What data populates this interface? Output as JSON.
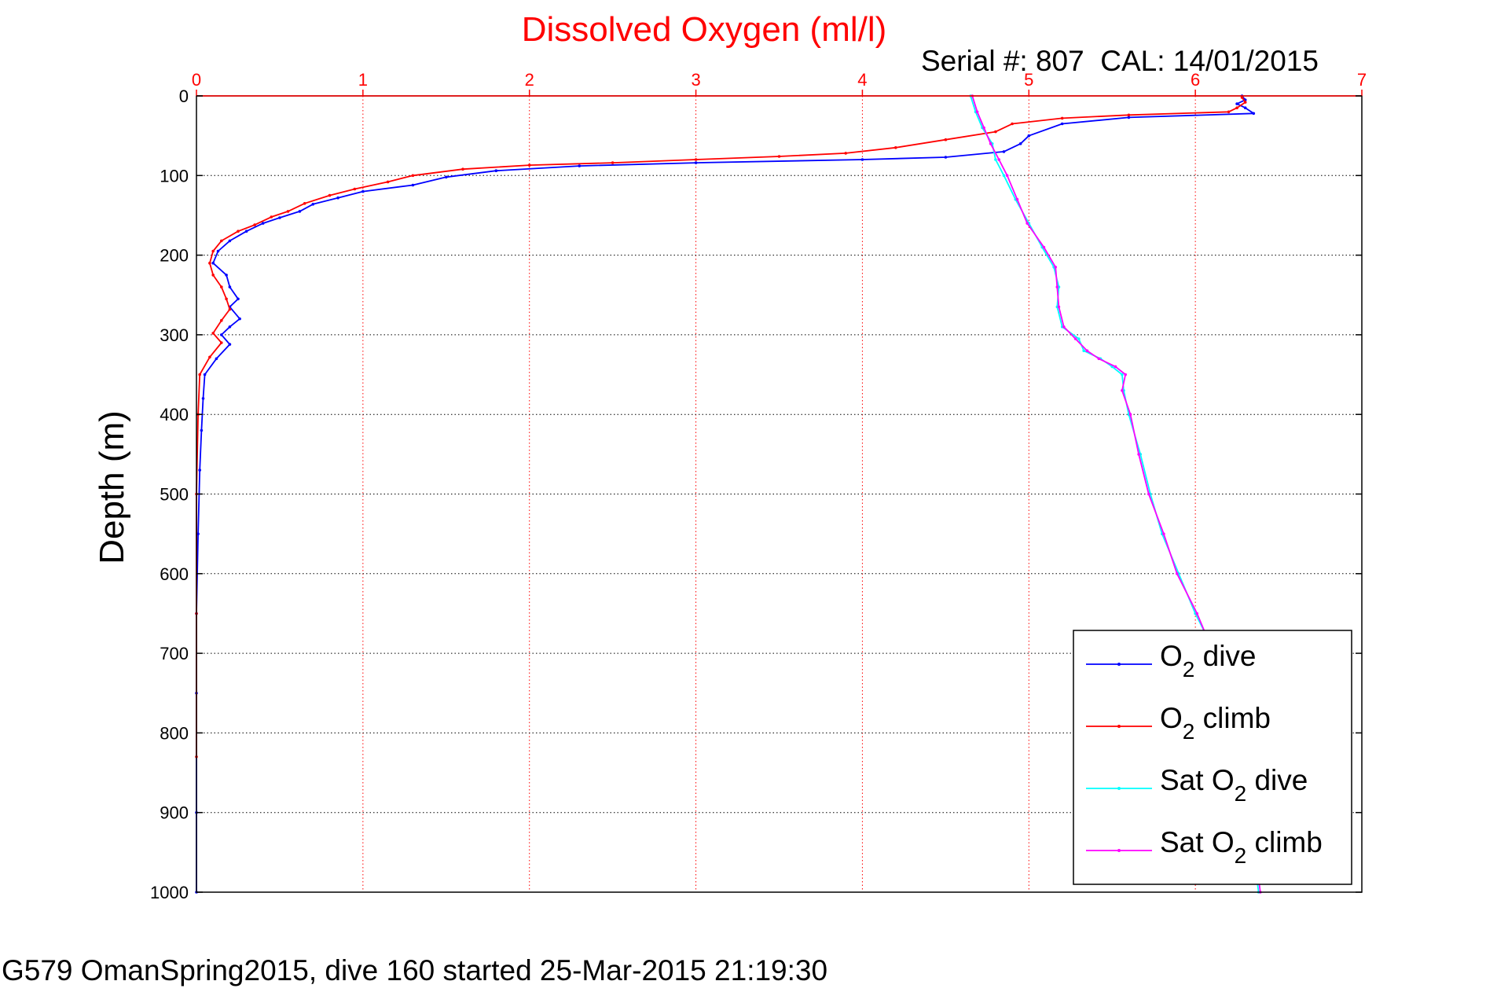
{
  "chart_data": {
    "type": "line",
    "title": "Dissolved Oxygen (ml/l)",
    "subtitle": "Serial #: 807  CAL: 14/01/2015",
    "ylabel": "Depth (m)",
    "xlim": [
      0,
      7
    ],
    "ylim": [
      0,
      1000
    ],
    "y_reversed": true,
    "x_axis_position": "top",
    "grid": true,
    "xticks": [
      "0",
      "1",
      "2",
      "3",
      "4",
      "5",
      "6",
      "7"
    ],
    "yticks": [
      "0",
      "100",
      "200",
      "300",
      "400",
      "500",
      "600",
      "700",
      "800",
      "900",
      "1000"
    ],
    "legend_position": "bottom-right",
    "colors": {
      "title": "#ff0000",
      "x_axis": "#ff0000",
      "grid_x": "#ff0000",
      "grid_y": "#000000"
    },
    "series": [
      {
        "name": "O2 dive",
        "legend": {
          "main": "O",
          "sub": "2",
          "rest": " dive"
        },
        "color": "#0000ff",
        "points": [
          [
            6.28,
            0
          ],
          [
            6.3,
            5
          ],
          [
            6.25,
            10
          ],
          [
            6.3,
            15
          ],
          [
            6.35,
            22
          ],
          [
            5.6,
            27
          ],
          [
            5.2,
            35
          ],
          [
            5.0,
            50
          ],
          [
            4.95,
            60
          ],
          [
            4.85,
            70
          ],
          [
            4.5,
            77
          ],
          [
            4.0,
            80
          ],
          [
            3.0,
            84
          ],
          [
            2.3,
            88
          ],
          [
            1.8,
            94
          ],
          [
            1.5,
            102
          ],
          [
            1.3,
            112
          ],
          [
            1.0,
            120
          ],
          [
            0.85,
            128
          ],
          [
            0.7,
            136
          ],
          [
            0.62,
            145
          ],
          [
            0.5,
            153
          ],
          [
            0.4,
            160
          ],
          [
            0.3,
            170
          ],
          [
            0.2,
            182
          ],
          [
            0.13,
            195
          ],
          [
            0.1,
            210
          ],
          [
            0.18,
            225
          ],
          [
            0.2,
            240
          ],
          [
            0.25,
            255
          ],
          [
            0.2,
            265
          ],
          [
            0.26,
            280
          ],
          [
            0.2,
            290
          ],
          [
            0.15,
            300
          ],
          [
            0.2,
            312
          ],
          [
            0.12,
            330
          ],
          [
            0.05,
            350
          ],
          [
            0.04,
            380
          ],
          [
            0.03,
            420
          ],
          [
            0.02,
            470
          ],
          [
            0.01,
            550
          ],
          [
            0.0,
            650
          ],
          [
            0.0,
            750
          ],
          [
            0.0,
            900
          ],
          [
            0.0,
            1000
          ]
        ]
      },
      {
        "name": "O2 climb",
        "legend": {
          "main": "O",
          "sub": "2",
          "rest": " climb"
        },
        "color": "#ff0000",
        "points": [
          [
            6.28,
            2
          ],
          [
            6.3,
            8
          ],
          [
            6.25,
            15
          ],
          [
            6.2,
            20
          ],
          [
            5.6,
            24
          ],
          [
            5.2,
            28
          ],
          [
            4.9,
            35
          ],
          [
            4.8,
            45
          ],
          [
            4.5,
            55
          ],
          [
            4.2,
            65
          ],
          [
            3.9,
            72
          ],
          [
            3.5,
            76
          ],
          [
            3.0,
            80
          ],
          [
            2.5,
            84
          ],
          [
            2.0,
            87
          ],
          [
            1.6,
            92
          ],
          [
            1.3,
            100
          ],
          [
            1.15,
            108
          ],
          [
            0.95,
            117
          ],
          [
            0.8,
            125
          ],
          [
            0.65,
            135
          ],
          [
            0.55,
            145
          ],
          [
            0.45,
            152
          ],
          [
            0.35,
            162
          ],
          [
            0.25,
            170
          ],
          [
            0.15,
            182
          ],
          [
            0.1,
            195
          ],
          [
            0.08,
            210
          ],
          [
            0.1,
            225
          ],
          [
            0.15,
            240
          ],
          [
            0.18,
            255
          ],
          [
            0.2,
            268
          ],
          [
            0.15,
            282
          ],
          [
            0.1,
            298
          ],
          [
            0.15,
            310
          ],
          [
            0.08,
            328
          ],
          [
            0.02,
            350
          ],
          [
            0.01,
            400
          ],
          [
            0.0,
            500
          ],
          [
            0.0,
            650
          ],
          [
            0.0,
            830
          ]
        ]
      },
      {
        "name": "Sat O2 dive",
        "legend": {
          "main": "Sat O",
          "sub": "2",
          "rest": " dive"
        },
        "color": "#00ffff",
        "points": [
          [
            4.65,
            0
          ],
          [
            4.68,
            20
          ],
          [
            4.72,
            40
          ],
          [
            4.78,
            60
          ],
          [
            4.8,
            80
          ],
          [
            4.85,
            100
          ],
          [
            4.92,
            130
          ],
          [
            5.0,
            160
          ],
          [
            5.08,
            190
          ],
          [
            5.15,
            215
          ],
          [
            5.18,
            240
          ],
          [
            5.17,
            265
          ],
          [
            5.2,
            290
          ],
          [
            5.3,
            305
          ],
          [
            5.33,
            320
          ],
          [
            5.43,
            330
          ],
          [
            5.5,
            340
          ],
          [
            5.56,
            350
          ],
          [
            5.57,
            370
          ],
          [
            5.6,
            400
          ],
          [
            5.67,
            450
          ],
          [
            5.73,
            500
          ],
          [
            5.8,
            550
          ],
          [
            5.9,
            600
          ],
          [
            6.0,
            650
          ],
          [
            6.12,
            700
          ],
          [
            6.2,
            750
          ],
          [
            6.26,
            800
          ],
          [
            6.32,
            900
          ],
          [
            6.38,
            1000
          ]
        ]
      },
      {
        "name": "Sat O2 climb",
        "legend": {
          "main": "Sat O",
          "sub": "2",
          "rest": " climb"
        },
        "color": "#ff00ff",
        "points": [
          [
            4.66,
            0
          ],
          [
            4.69,
            20
          ],
          [
            4.73,
            40
          ],
          [
            4.77,
            60
          ],
          [
            4.82,
            80
          ],
          [
            4.87,
            100
          ],
          [
            4.93,
            130
          ],
          [
            4.99,
            160
          ],
          [
            5.09,
            190
          ],
          [
            5.16,
            215
          ],
          [
            5.17,
            240
          ],
          [
            5.18,
            265
          ],
          [
            5.21,
            290
          ],
          [
            5.28,
            305
          ],
          [
            5.35,
            320
          ],
          [
            5.42,
            330
          ],
          [
            5.52,
            340
          ],
          [
            5.58,
            350
          ],
          [
            5.56,
            370
          ],
          [
            5.61,
            400
          ],
          [
            5.66,
            450
          ],
          [
            5.72,
            500
          ],
          [
            5.81,
            550
          ],
          [
            5.89,
            600
          ],
          [
            6.01,
            650
          ],
          [
            6.11,
            700
          ],
          [
            6.19,
            750
          ],
          [
            6.27,
            800
          ],
          [
            6.33,
            900
          ],
          [
            6.39,
            1000
          ]
        ]
      }
    ]
  },
  "footer": "G579 OmanSpring2015, dive 160 started 25-Mar-2015 21:19:30"
}
